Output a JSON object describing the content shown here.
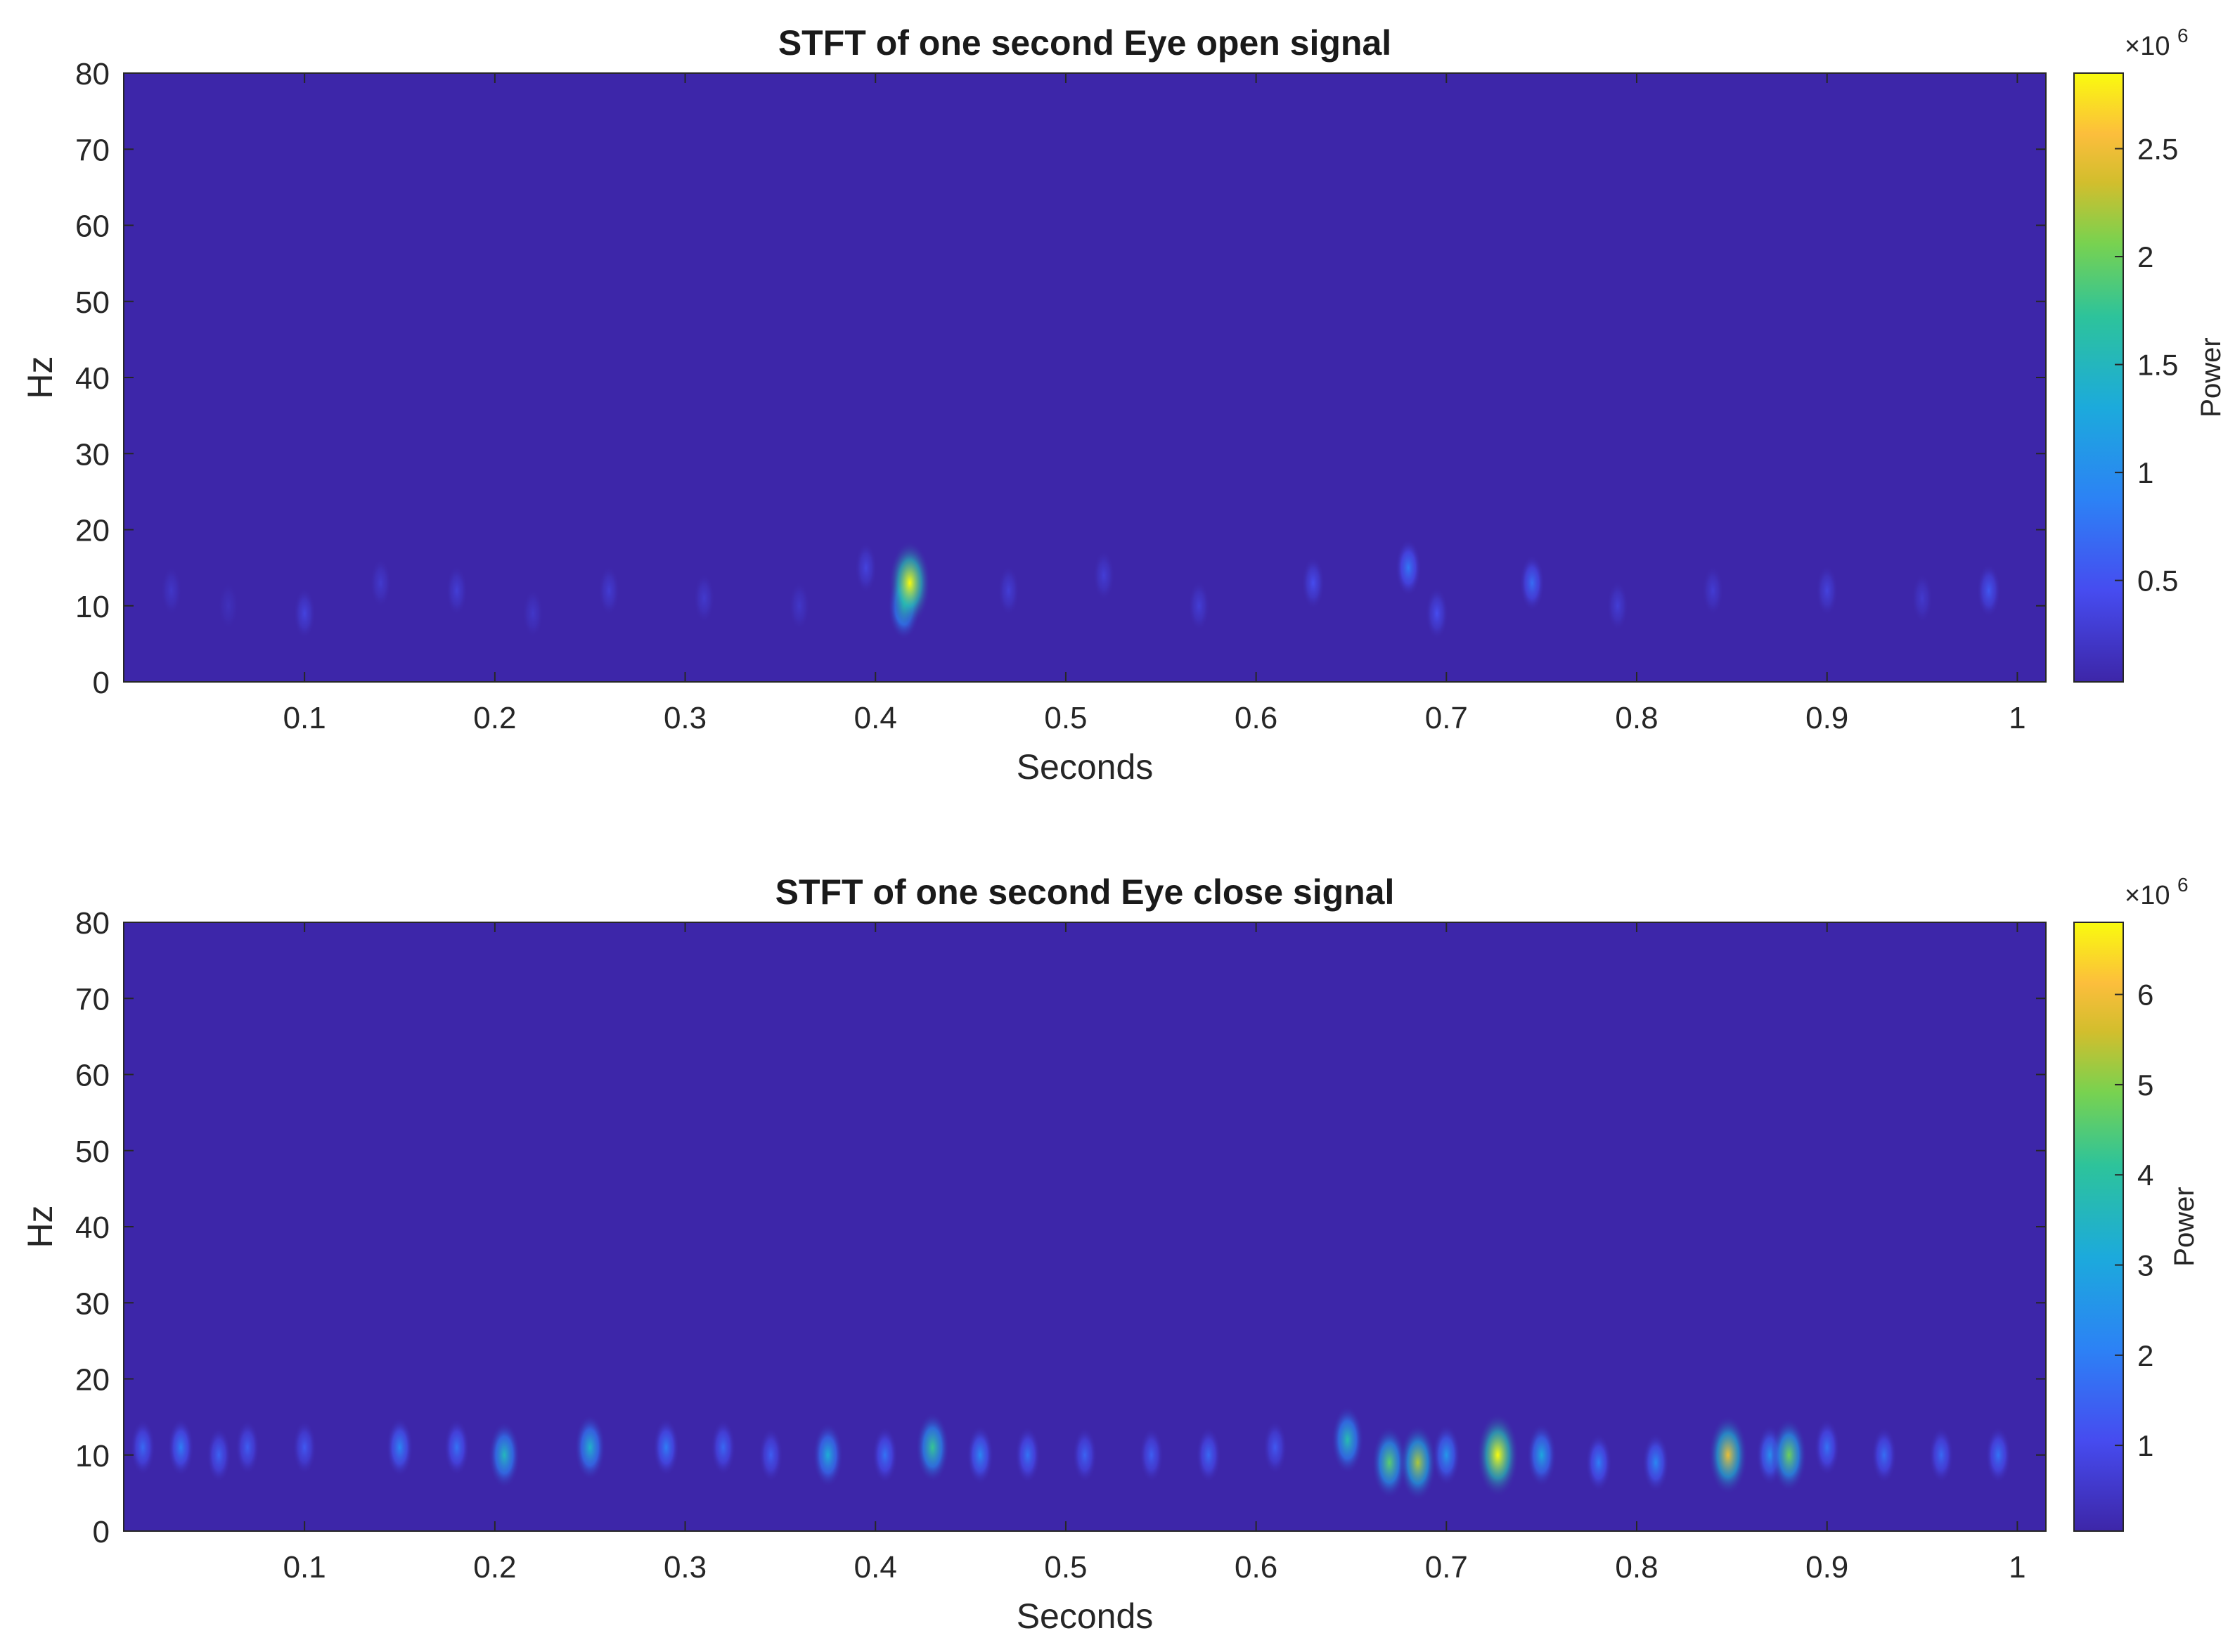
{
  "chart_data": [
    {
      "type": "heatmap",
      "title": "STFT of one second Eye open signal",
      "xlabel": "Seconds",
      "ylabel": "Hz",
      "xlim": [
        0.005,
        1.015
      ],
      "ylim": [
        0,
        80
      ],
      "xticks": [
        "0.1",
        "0.2",
        "0.3",
        "0.4",
        "0.5",
        "0.6",
        "0.7",
        "0.8",
        "0.9",
        "1"
      ],
      "yticks": [
        "0",
        "10",
        "20",
        "30",
        "40",
        "50",
        "60",
        "70",
        "80"
      ],
      "colorbar": {
        "label": "Power",
        "exponent_base": "×10",
        "exponent_power": "6",
        "range": [
          0.03,
          2.85
        ],
        "ticks": [
          "0.5",
          "1",
          "1.5",
          "2",
          "2.5"
        ],
        "colormap": "parula"
      },
      "background_value": 0.03,
      "hotspots": [
        {
          "t": 0.03,
          "f": 12,
          "power": 0.22
        },
        {
          "t": 0.06,
          "f": 10,
          "power": 0.15
        },
        {
          "t": 0.1,
          "f": 9,
          "power": 0.35
        },
        {
          "t": 0.14,
          "f": 13,
          "power": 0.25
        },
        {
          "t": 0.18,
          "f": 12,
          "power": 0.3
        },
        {
          "t": 0.22,
          "f": 9,
          "power": 0.22
        },
        {
          "t": 0.26,
          "f": 12,
          "power": 0.28
        },
        {
          "t": 0.31,
          "f": 11,
          "power": 0.25
        },
        {
          "t": 0.36,
          "f": 10,
          "power": 0.22
        },
        {
          "t": 0.395,
          "f": 15,
          "power": 0.35
        },
        {
          "t": 0.418,
          "f": 13,
          "power": 2.85
        },
        {
          "t": 0.415,
          "f": 10,
          "power": 1.6
        },
        {
          "t": 0.47,
          "f": 12,
          "power": 0.3
        },
        {
          "t": 0.52,
          "f": 14,
          "power": 0.3
        },
        {
          "t": 0.57,
          "f": 10,
          "power": 0.3
        },
        {
          "t": 0.63,
          "f": 13,
          "power": 0.45
        },
        {
          "t": 0.68,
          "f": 15,
          "power": 0.8
        },
        {
          "t": 0.695,
          "f": 9,
          "power": 0.45
        },
        {
          "t": 0.745,
          "f": 13,
          "power": 0.7
        },
        {
          "t": 0.79,
          "f": 10,
          "power": 0.3
        },
        {
          "t": 0.84,
          "f": 12,
          "power": 0.28
        },
        {
          "t": 0.9,
          "f": 12,
          "power": 0.35
        },
        {
          "t": 0.95,
          "f": 11,
          "power": 0.25
        },
        {
          "t": 0.985,
          "f": 12,
          "power": 0.55
        }
      ]
    },
    {
      "type": "heatmap",
      "title": "STFT of one second Eye close signal",
      "xlabel": "Seconds",
      "ylabel": "Hz",
      "xlim": [
        0.005,
        1.015
      ],
      "ylim": [
        0,
        80
      ],
      "xticks": [
        "0.1",
        "0.2",
        "0.3",
        "0.4",
        "0.5",
        "0.6",
        "0.7",
        "0.8",
        "0.9",
        "1"
      ],
      "yticks": [
        "0",
        "10",
        "20",
        "30",
        "40",
        "50",
        "60",
        "70",
        "80"
      ],
      "colorbar": {
        "label": "Power",
        "exponent_base": "×10",
        "exponent_power": "6",
        "range": [
          0.05,
          6.8
        ],
        "ticks": [
          "1",
          "2",
          "3",
          "4",
          "5",
          "6"
        ],
        "colormap": "parula"
      },
      "background_value": 0.05,
      "hotspots": [
        {
          "t": 0.015,
          "f": 11,
          "power": 1.6
        },
        {
          "t": 0.035,
          "f": 11,
          "power": 2.0
        },
        {
          "t": 0.055,
          "f": 10,
          "power": 1.5
        },
        {
          "t": 0.07,
          "f": 11,
          "power": 1.4
        },
        {
          "t": 0.1,
          "f": 11,
          "power": 1.3
        },
        {
          "t": 0.15,
          "f": 11,
          "power": 2.2
        },
        {
          "t": 0.18,
          "f": 11,
          "power": 1.8
        },
        {
          "t": 0.205,
          "f": 10,
          "power": 3.6
        },
        {
          "t": 0.25,
          "f": 11,
          "power": 3.4
        },
        {
          "t": 0.29,
          "f": 11,
          "power": 2.0
        },
        {
          "t": 0.32,
          "f": 11,
          "power": 1.6
        },
        {
          "t": 0.345,
          "f": 10,
          "power": 1.4
        },
        {
          "t": 0.375,
          "f": 10,
          "power": 3.2
        },
        {
          "t": 0.405,
          "f": 10,
          "power": 1.8
        },
        {
          "t": 0.43,
          "f": 11,
          "power": 4.2
        },
        {
          "t": 0.455,
          "f": 10,
          "power": 2.2
        },
        {
          "t": 0.48,
          "f": 10,
          "power": 1.8
        },
        {
          "t": 0.51,
          "f": 10,
          "power": 1.5
        },
        {
          "t": 0.545,
          "f": 10,
          "power": 1.4
        },
        {
          "t": 0.575,
          "f": 10,
          "power": 1.6
        },
        {
          "t": 0.61,
          "f": 11,
          "power": 1.3
        },
        {
          "t": 0.648,
          "f": 12,
          "power": 3.8
        },
        {
          "t": 0.67,
          "f": 9,
          "power": 4.6
        },
        {
          "t": 0.685,
          "f": 9,
          "power": 5.3
        },
        {
          "t": 0.7,
          "f": 10,
          "power": 2.6
        },
        {
          "t": 0.727,
          "f": 10,
          "power": 6.8
        },
        {
          "t": 0.75,
          "f": 10,
          "power": 3.0
        },
        {
          "t": 0.78,
          "f": 9,
          "power": 2.0
        },
        {
          "t": 0.81,
          "f": 9,
          "power": 2.2
        },
        {
          "t": 0.848,
          "f": 10,
          "power": 5.9
        },
        {
          "t": 0.87,
          "f": 10,
          "power": 2.4
        },
        {
          "t": 0.88,
          "f": 10,
          "power": 4.8
        },
        {
          "t": 0.9,
          "f": 11,
          "power": 1.8
        },
        {
          "t": 0.93,
          "f": 10,
          "power": 1.7
        },
        {
          "t": 0.96,
          "f": 10,
          "power": 1.6
        },
        {
          "t": 0.99,
          "f": 10,
          "power": 1.8
        }
      ]
    }
  ]
}
